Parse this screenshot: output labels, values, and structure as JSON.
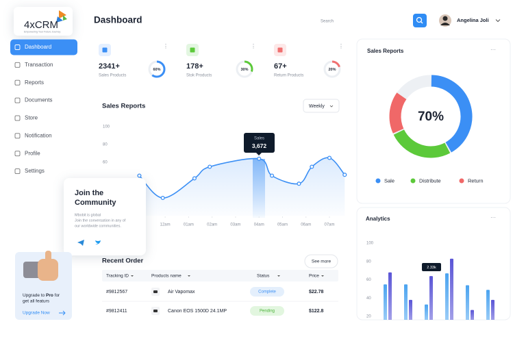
{
  "sidebar": {
    "logo": "4xCRM",
    "tagline": "Empowering Your Future Journey",
    "nav": [
      "Dashboard",
      "Transaction",
      "Reports",
      "Documents",
      "Store",
      "Notification",
      "Profile",
      "Settings"
    ]
  },
  "header": {
    "title": "Dashboard",
    "search": "Search",
    "user": "Angelina Joli"
  },
  "stats": [
    {
      "value": "2341+",
      "label": "Sales Products",
      "percent": 60,
      "percent_label": "60%",
      "color": "#3b8ff5"
    },
    {
      "value": "178+",
      "label": "Stok Products",
      "percent": 30,
      "percent_label": "30%",
      "color": "#5cc93a"
    },
    {
      "value": "67+",
      "label": "Return Products",
      "percent": 20,
      "percent_label": "20%",
      "color": "#f07070"
    }
  ],
  "community": {
    "title": [
      "Join the",
      "Community"
    ],
    "description": [
      "Mbobit is global",
      "Join the conversation in any of",
      "our worldwide communities."
    ]
  },
  "upgrade": {
    "text": [
      "Upgrade to",
      "Pro",
      "for"
    ],
    "line2": "get all featurs",
    "button": "Upgrade Now"
  },
  "recent_order": {
    "title": "Recent Order",
    "button": "See more",
    "columns": [
      "Tracking ID",
      "Products name",
      "Status",
      "Price"
    ],
    "rows": [
      [
        "#9812567",
        "Air Vapomax",
        "Complete",
        "$22.78"
      ],
      [
        "#9812411",
        "Canon EOS 1500D 24.1MP",
        "Pending",
        "$122.8"
      ]
    ]
  },
  "chart_data": [
    {
      "type": "line",
      "title": "Sales Reports",
      "filter": "Weekly",
      "x": [
        -0.1,
        0.9,
        2.25,
        2.9,
        5,
        5.55,
        6.7,
        7.25,
        8,
        8.65
      ],
      "values": [
        45,
        20,
        42,
        55,
        64,
        45,
        36,
        55,
        65,
        46
      ],
      "color": "#3b8ff5",
      "xlim": [
        -0.2,
        8.7
      ],
      "xticks": [
        {
          "value": 1,
          "label": "12am"
        },
        {
          "value": 2,
          "label": "01am"
        },
        {
          "value": 3,
          "label": "02am"
        },
        {
          "value": 4,
          "label": "03am"
        },
        {
          "value": 5,
          "label": "04am"
        },
        {
          "value": 6,
          "label": "05am"
        },
        {
          "value": 7,
          "label": "06am"
        },
        {
          "value": 8,
          "label": "07am"
        }
      ],
      "ylim": [
        0,
        100
      ],
      "yticks": [
        100,
        80,
        60
      ],
      "grid": false,
      "annotation": {
        "title": "Sales",
        "value": "3,672"
      }
    },
    {
      "type": "donut",
      "title": "Sales Reports",
      "center_label": "70%",
      "categories": [
        "Sale",
        "Distribute",
        "Return"
      ],
      "values": [
        42,
        26,
        17
      ],
      "colors": [
        "#3b8ff5",
        "#5cc93a",
        "#f06868"
      ],
      "legend": "bottom"
    },
    {
      "type": "bar",
      "title": "Analytics",
      "categories": [
        null,
        null,
        null,
        null,
        null,
        null
      ],
      "series": [
        {
          "color": "#4aa3f0",
          "values": [
            55,
            55,
            33,
            67,
            54,
            49
          ]
        },
        {
          "color": "#5a55d6",
          "values": [
            68,
            38,
            64,
            83,
            27,
            38
          ]
        }
      ],
      "ylim": [
        15,
        100
      ],
      "yticks": [
        100,
        80,
        60,
        40,
        20
      ],
      "grid": false,
      "annotation": "2.33k"
    }
  ]
}
